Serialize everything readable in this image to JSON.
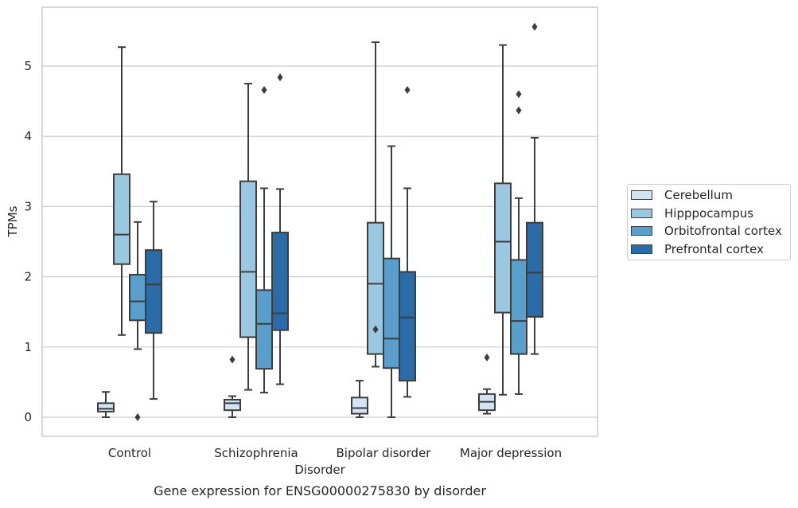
{
  "chart_data": {
    "type": "box",
    "title": "",
    "caption": "Gene expression for ENSG00000275830 by disorder",
    "xlabel": "Disorder",
    "ylabel": "TPMs",
    "ylim": [
      -0.27,
      5.88
    ],
    "yticks": [
      0,
      1,
      2,
      3,
      4,
      5
    ],
    "grid": "horizontal",
    "legend_position": "right",
    "categories": [
      "Control",
      "Schizophrenia",
      "Bipolar disorder",
      "Major depression"
    ],
    "series": [
      {
        "name": "Cerebellum",
        "color": "#d2e3f3",
        "boxes": [
          {
            "whisker_low": 0.0,
            "q1": 0.08,
            "median": 0.12,
            "q3": 0.2,
            "whisker_high": 0.36,
            "outliers": []
          },
          {
            "whisker_low": 0.0,
            "q1": 0.1,
            "median": 0.2,
            "q3": 0.25,
            "whisker_high": 0.3,
            "outliers": [
              0.82
            ]
          },
          {
            "whisker_low": 0.0,
            "q1": 0.05,
            "median": 0.13,
            "q3": 0.28,
            "whisker_high": 0.52,
            "outliers": []
          },
          {
            "whisker_low": 0.05,
            "q1": 0.1,
            "median": 0.22,
            "q3": 0.33,
            "whisker_high": 0.4,
            "outliers": [
              0.85
            ]
          }
        ]
      },
      {
        "name": "Hipppocampus",
        "color": "#9ac8e0",
        "boxes": [
          {
            "whisker_low": 1.17,
            "q1": 2.18,
            "median": 2.6,
            "q3": 3.46,
            "whisker_high": 5.27,
            "outliers": []
          },
          {
            "whisker_low": 0.39,
            "q1": 1.14,
            "median": 2.07,
            "q3": 3.36,
            "whisker_high": 4.75,
            "outliers": []
          },
          {
            "whisker_low": 0.72,
            "q1": 0.9,
            "median": 1.9,
            "q3": 2.77,
            "whisker_high": 5.34,
            "outliers": [
              1.25
            ]
          },
          {
            "whisker_low": 0.32,
            "q1": 1.49,
            "median": 2.5,
            "q3": 3.33,
            "whisker_high": 5.3,
            "outliers": []
          }
        ]
      },
      {
        "name": "Orbitofrontal cortex",
        "color": "#5a9ecb",
        "boxes": [
          {
            "whisker_low": 0.97,
            "q1": 1.38,
            "median": 1.65,
            "q3": 2.03,
            "whisker_high": 2.78,
            "outliers": [
              0.0
            ]
          },
          {
            "whisker_low": 0.35,
            "q1": 0.69,
            "median": 1.33,
            "q3": 1.81,
            "whisker_high": 3.26,
            "outliers": [
              4.66
            ]
          },
          {
            "whisker_low": 0.0,
            "q1": 0.7,
            "median": 1.12,
            "q3": 2.26,
            "whisker_high": 3.86,
            "outliers": []
          },
          {
            "whisker_low": 0.33,
            "q1": 0.9,
            "median": 1.37,
            "q3": 2.24,
            "whisker_high": 3.12,
            "outliers": [
              4.37,
              4.6
            ]
          }
        ]
      },
      {
        "name": "Prefrontal cortex",
        "color": "#2b6ba7",
        "boxes": [
          {
            "whisker_low": 0.26,
            "q1": 1.2,
            "median": 1.89,
            "q3": 2.38,
            "whisker_high": 3.07,
            "outliers": []
          },
          {
            "whisker_low": 0.47,
            "q1": 1.24,
            "median": 1.48,
            "q3": 2.63,
            "whisker_high": 3.25,
            "outliers": [
              4.84
            ]
          },
          {
            "whisker_low": 0.29,
            "q1": 0.52,
            "median": 1.42,
            "q3": 2.07,
            "whisker_high": 3.26,
            "outliers": [
              4.66
            ]
          },
          {
            "whisker_low": 0.9,
            "q1": 1.43,
            "median": 2.06,
            "q3": 2.77,
            "whisker_high": 3.98,
            "outliers": [
              5.56
            ]
          }
        ]
      }
    ]
  }
}
